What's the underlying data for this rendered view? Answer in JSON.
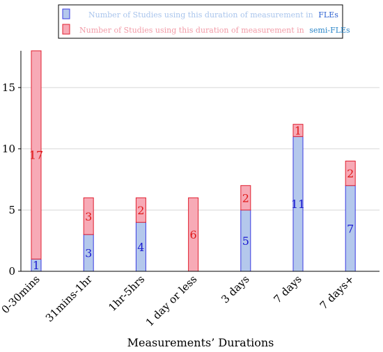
{
  "chart_data": {
    "type": "bar",
    "stacked": true,
    "categories": [
      "0-30mins",
      "31mins-1hr",
      "1hr-5hrs",
      "1 day or less",
      "3 days",
      "7 days",
      "7 days+"
    ],
    "series": [
      {
        "name": "Number of Studies using this duration of measurement in FLEs",
        "legend_prefix": "Number of Studies using this duration of measurement in",
        "legend_suffix": "FLEs",
        "values": [
          1,
          3,
          4,
          0,
          5,
          11,
          7
        ],
        "labels": [
          "1",
          "3",
          "4",
          "",
          "5",
          "11",
          "7"
        ],
        "fill": "#b4c8ec",
        "stroke": "#3a3ae0",
        "label_color": "#1a1ad0",
        "legend_text_color": "#a8c4ec",
        "legend_suffix_color": "#2a5fd0"
      },
      {
        "name": "Number of Studies using this duration of measurement in semi-FLEs",
        "legend_prefix": "Number of Studies using this duration of measurement in",
        "legend_suffix": "semi-FLEs",
        "values": [
          17,
          3,
          2,
          6,
          2,
          1,
          2
        ],
        "labels": [
          "17",
          "3",
          "2",
          "6",
          "2",
          "1",
          "2"
        ],
        "fill": "#f7aab6",
        "stroke": "#e02030",
        "label_color": "#e01818",
        "legend_text_color": "#f29aa6",
        "legend_suffix_color": "#2a86c8"
      }
    ],
    "xlabel": "Measurements’ Durations",
    "ylabel": "",
    "ylim": [
      0,
      18
    ],
    "yticks": [
      0,
      5,
      10,
      15
    ],
    "grid": true,
    "legend_position": "top-center"
  }
}
